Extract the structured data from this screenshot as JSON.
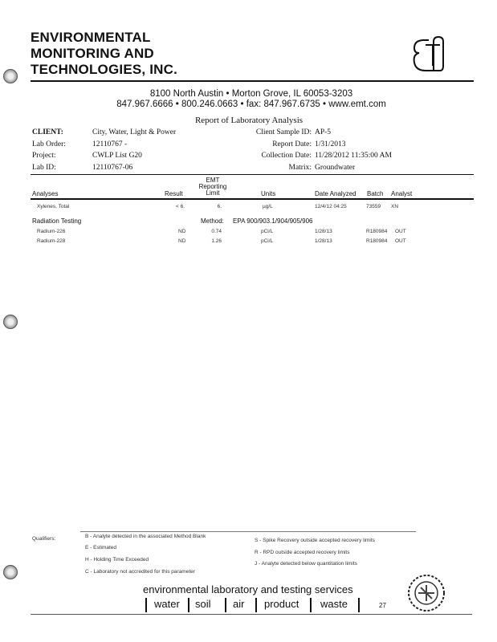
{
  "company": {
    "line1": "ENVIRONMENTAL",
    "line2": "MONITORING AND",
    "line3": "TECHNOLOGIES, INC.",
    "logo_text": "EMT",
    "address": "8100 North Austin • Morton Grove, IL 60053-3203",
    "contact": "847.967.6666 • 800.246.0663 • fax: 847.967.6735 • www.emt.com"
  },
  "report_title": "Report of Laboratory Analysis",
  "info": {
    "client_label": "CLIENT:",
    "client": "City, Water, Light & Power",
    "lab_order_label": "Lab Order:",
    "lab_order": "12110767 -",
    "project_label": "Project:",
    "project": "CWLP List G20",
    "lab_id_label": "Lab ID:",
    "lab_id": "12110767-06",
    "sample_id_label": "Client Sample ID:",
    "sample_id": "AP-5",
    "report_date_label": "Report Date:",
    "report_date": "1/31/2013",
    "collection_date_label": "Collection Date:",
    "collection_date": "11/28/2012 11:35:00 AM",
    "matrix_label": "Matrix:",
    "matrix": "Groundwater"
  },
  "columns": {
    "analyses": "Analyses",
    "result": "Result",
    "limit1": "EMT",
    "limit2": "Reporting",
    "limit3": "Limit",
    "units": "Units",
    "date": "Date Analyzed",
    "batch": "Batch",
    "analyst": "Analyst"
  },
  "rows": [
    {
      "analyte": "Xylenes, Total",
      "result": "< 6.",
      "limit": "6.",
      "units": "µg/L",
      "date": "12/4/12 04:25",
      "batch": "73559",
      "analyst": "XN"
    }
  ],
  "section": {
    "name": "Radiation Testing",
    "method_label": "Method:",
    "method": "EPA 900/903.1/904/905/906"
  },
  "rad_rows": [
    {
      "analyte": "Radium-226",
      "result": "ND",
      "limit": "0.74",
      "units": "pCi/L",
      "date": "1/28/13",
      "batch": "R180984",
      "analyst": "OUT"
    },
    {
      "analyte": "Radium-228",
      "result": "ND",
      "limit": "1.26",
      "units": "pCi/L",
      "date": "1/28/13",
      "batch": "R180984",
      "analyst": "OUT"
    }
  ],
  "qualifiers": {
    "label": "Qualifiers:",
    "left": [
      "B - Analyte detected in the associated Method Blank",
      "E - Estimated",
      "H - Holding Time Exceeded",
      "C - Laboratory not accredited for this parameter"
    ],
    "right": [
      "S - Spike Recovery outside accepted recovery limits",
      "R - RPD outside accepted recovery limits",
      "J - Analyte detected below quantitation limits"
    ]
  },
  "footer": {
    "tagline": "environmental laboratory and testing services",
    "words": [
      "water",
      "soil",
      "air",
      "product",
      "waste"
    ],
    "page": "27"
  }
}
